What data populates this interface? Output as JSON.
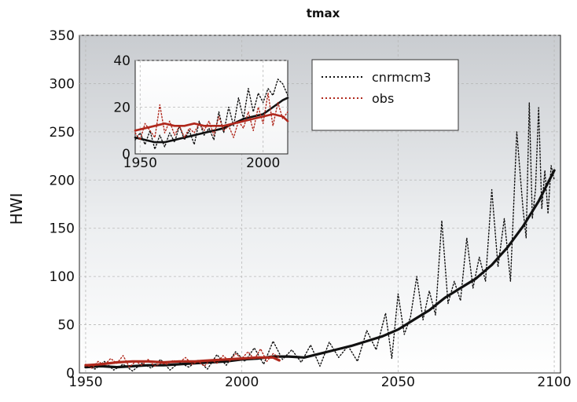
{
  "chart_data": [
    {
      "type": "line",
      "title": "tmax",
      "xlabel": "",
      "ylabel": "HWI",
      "xlim": [
        1948,
        2102
      ],
      "ylim": [
        0,
        350
      ],
      "xticks": [
        1950,
        2000,
        2050,
        2100
      ],
      "yticks": [
        0,
        50,
        100,
        150,
        200,
        250,
        300,
        350
      ],
      "grid": true,
      "legend_position": "top-center",
      "series": [
        {
          "name": "cnrmcm3",
          "style": "dotted",
          "color": "#111111",
          "x": [
            1950,
            1953,
            1956,
            1959,
            1962,
            1965,
            1968,
            1971,
            1974,
            1977,
            1980,
            1983,
            1986,
            1989,
            1992,
            1995,
            1998,
            2001,
            2004,
            2007,
            2010,
            2013,
            2016,
            2019,
            2022,
            2025,
            2028,
            2031,
            2034,
            2037,
            2040,
            2043,
            2046,
            2048,
            2050,
            2052,
            2054,
            2056,
            2058,
            2060,
            2062,
            2064,
            2066,
            2068,
            2070,
            2072,
            2074,
            2076,
            2078,
            2080,
            2082,
            2084,
            2086,
            2088,
            2090,
            2091,
            2092,
            2093,
            2094,
            2095,
            2096,
            2097,
            2098,
            2099,
            2100
          ],
          "y": [
            8,
            4,
            12,
            3,
            9,
            2,
            10,
            5,
            14,
            3,
            11,
            6,
            13,
            4,
            19,
            8,
            22,
            12,
            26,
            9,
            33,
            14,
            24,
            11,
            29,
            7,
            32,
            16,
            28,
            12,
            44,
            24,
            62,
            15,
            82,
            40,
            58,
            100,
            55,
            85,
            60,
            158,
            72,
            95,
            75,
            140,
            88,
            120,
            95,
            190,
            110,
            160,
            95,
            250,
            170,
            140,
            280,
            160,
            190,
            275,
            170,
            210,
            165,
            215,
            200
          ]
        },
        {
          "name": "",
          "style": "solid-thick",
          "color": "#111111",
          "x": [
            1950,
            1955,
            1960,
            1965,
            1970,
            1975,
            1980,
            1985,
            1990,
            1995,
            2000,
            2005,
            2010,
            2015,
            2020,
            2025,
            2030,
            2035,
            2040,
            2045,
            2050,
            2055,
            2060,
            2065,
            2070,
            2075,
            2080,
            2085,
            2090,
            2095,
            2100
          ],
          "y": [
            6,
            7,
            6,
            7,
            8,
            8,
            9,
            10,
            11,
            12,
            14,
            15,
            17,
            17,
            16,
            20,
            24,
            28,
            33,
            38,
            45,
            55,
            65,
            78,
            88,
            98,
            112,
            130,
            152,
            178,
            210
          ]
        },
        {
          "name": "obs",
          "style": "dotted",
          "color": "#b0281c",
          "x": [
            1950,
            1952,
            1954,
            1956,
            1958,
            1960,
            1962,
            1964,
            1966,
            1968,
            1970,
            1972,
            1974,
            1976,
            1978,
            1980,
            1982,
            1984,
            1986,
            1988,
            1990,
            1992,
            1994,
            1996,
            1998,
            2000,
            2002,
            2004,
            2006,
            2008,
            2010,
            2012
          ],
          "y": [
            9,
            5,
            12,
            8,
            15,
            10,
            18,
            6,
            12,
            8,
            14,
            7,
            10,
            9,
            13,
            11,
            16,
            9,
            12,
            7,
            14,
            10,
            18,
            12,
            20,
            15,
            22,
            14,
            25,
            12,
            20,
            16
          ]
        },
        {
          "name": "",
          "style": "solid-thick",
          "color": "#b0281c",
          "x": [
            1950,
            1955,
            1960,
            1965,
            1970,
            1975,
            1980,
            1985,
            1990,
            1995,
            2000,
            2005,
            2010,
            2012
          ],
          "y": [
            8,
            9,
            11,
            12,
            12,
            11,
            12,
            12,
            13,
            14,
            15,
            16,
            16,
            13
          ]
        }
      ]
    },
    {
      "type": "line",
      "title": "",
      "xlabel": "",
      "ylabel": "",
      "xlim": [
        1948,
        2010
      ],
      "ylim": [
        0,
        40
      ],
      "xticks": [
        1950,
        2000
      ],
      "yticks": [
        0,
        20,
        40
      ],
      "grid": true,
      "series": [
        {
          "name": "cnrmcm3",
          "style": "dotted",
          "color": "#111111",
          "x": [
            1948,
            1950,
            1952,
            1954,
            1956,
            1958,
            1960,
            1962,
            1964,
            1966,
            1968,
            1970,
            1972,
            1974,
            1976,
            1978,
            1980,
            1982,
            1984,
            1986,
            1988,
            1990,
            1992,
            1994,
            1996,
            1998,
            2000,
            2002,
            2004,
            2006,
            2008,
            2010
          ],
          "y": [
            6,
            9,
            4,
            10,
            2,
            8,
            3,
            9,
            5,
            12,
            6,
            10,
            4,
            14,
            8,
            11,
            6,
            18,
            9,
            20,
            12,
            24,
            15,
            28,
            18,
            26,
            22,
            28,
            25,
            32,
            30,
            25
          ]
        },
        {
          "name": "",
          "style": "solid-thick",
          "color": "#111111",
          "x": [
            1948,
            1952,
            1956,
            1960,
            1964,
            1968,
            1972,
            1976,
            1980,
            1984,
            1988,
            1992,
            1996,
            2000,
            2004,
            2008,
            2010
          ],
          "y": [
            7,
            6,
            5,
            5,
            6,
            7,
            8,
            9,
            10,
            11,
            13,
            15,
            16,
            17,
            20,
            23,
            24
          ]
        },
        {
          "name": "obs",
          "style": "dotted",
          "color": "#b0281c",
          "x": [
            1948,
            1950,
            1952,
            1954,
            1956,
            1958,
            1960,
            1962,
            1964,
            1966,
            1968,
            1970,
            1972,
            1974,
            1976,
            1978,
            1980,
            1982,
            1984,
            1986,
            1988,
            1990,
            1992,
            1994,
            1996,
            1998,
            2000,
            2002,
            2004,
            2006,
            2008,
            2010
          ],
          "y": [
            9,
            6,
            13,
            10,
            7,
            21,
            9,
            14,
            8,
            12,
            7,
            11,
            9,
            13,
            10,
            14,
            8,
            16,
            10,
            12,
            7,
            14,
            11,
            18,
            10,
            20,
            13,
            26,
            12,
            22,
            15,
            18
          ]
        },
        {
          "name": "",
          "style": "solid-thick",
          "color": "#b0281c",
          "x": [
            1948,
            1952,
            1956,
            1960,
            1964,
            1968,
            1972,
            1976,
            1980,
            1984,
            1988,
            1992,
            1996,
            2000,
            2004,
            2008,
            2010
          ],
          "y": [
            10,
            11,
            12,
            13,
            12,
            12,
            13,
            12,
            12,
            12,
            13,
            14,
            15,
            16,
            17,
            16,
            14
          ]
        }
      ]
    }
  ]
}
